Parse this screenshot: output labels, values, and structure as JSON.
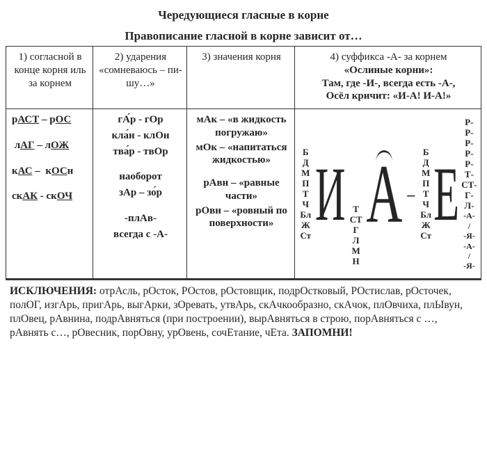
{
  "title": "Чередующиеся гласные в корне",
  "subtitle": "Правописание гласной в корне зависит от…",
  "headers": {
    "c1": "1) согласной в конце кор­ня иль за корнем",
    "c2": "2)  ударения «сомнева­юсь – пи­шу…»",
    "c3": "3)  значения корня",
    "c4_l1": "4)  суффикса -А-  за корнем",
    "c4_l2": "«Ослиные корни»:",
    "c4_l3": "Там, где -И-, всегда есть -А-,",
    "c4_l4": "Осёл кричит: «И-А! И-А!»"
  },
  "col1_html": [
    "р<span class='u'>АСТ</span> – р<span class='u'>ОС</span>",
    " л<span class='u'>АГ</span> – л<span class='u'>ОЖ</span>",
    "к<span class='u'>АС</span> –  к<span class='u'>ОС</span>н",
    "ск<span class='u'>АК</span> - ск<span class='u'>ОЧ</span>"
  ],
  "col2_groups": [
    [
      "гА́р - гОр",
      "кла́н - клОн",
      "тва́р - твОр"
    ],
    [
      "наоборот",
      "зАр – зо́р"
    ],
    [
      "<span class='b'>-плАв-</span>",
      "<span class='b'>всегда с -А-</span>"
    ]
  ],
  "col3_html": [
    "<span class='b'>мАк – «в жидкость погружаю»</span>",
    "<span class='b'>мОк – «на­питаться жидкостью»</span>",
    "<span class='b'>рАвн – «равные час­ти»</span>",
    "<span class='b'>рОвн – «ровный по поверхности»</span>"
  ],
  "diagram": {
    "left_letters": [
      "Б",
      "Д",
      "М",
      "П",
      "Т",
      "Ч",
      "Бл",
      "Ж",
      "Ст"
    ],
    "big1": "И",
    "mid_letters": [
      "Т",
      "СТ",
      "Г",
      "Л",
      "М",
      "Н"
    ],
    "big2": "А",
    "dash": "–",
    "right_letters": [
      "Б",
      "Д",
      "М",
      "П",
      "Т",
      "Ч",
      "Бл",
      "Ж",
      "Ст"
    ],
    "big3": "Е",
    "far_letters": [
      "Р-",
      "Р-",
      "Р-",
      "Р-",
      "Р-",
      "Т-",
      "СТ-",
      "Г-",
      "Л-"
    ],
    "suffix_lines": [
      "-А- / -Я-",
      "-А- / -Я-"
    ]
  },
  "exceptions_html": "<span class='b'>ИСКЛЮЧЕНИЯ:</span> отрАсль,  рОсток,  РОстов,  рОстовщик,  подрОстковый, РОстислав, рОсточек, полОГ,  изгАрь, пригАрь, выгАрки, зОревать, утвАрь, скАчкообразно, скАчок,  плОвчиха, плЫвун, плОвец, рАвнина, подрАвняться (при построении), вырАвняться в строю, порАвняться с …, рАвнять с…, рО­весник, порОвну, урОвень, сочЕтание, чЕта. <span class='b'>ЗАПОМНИ!</span>"
}
